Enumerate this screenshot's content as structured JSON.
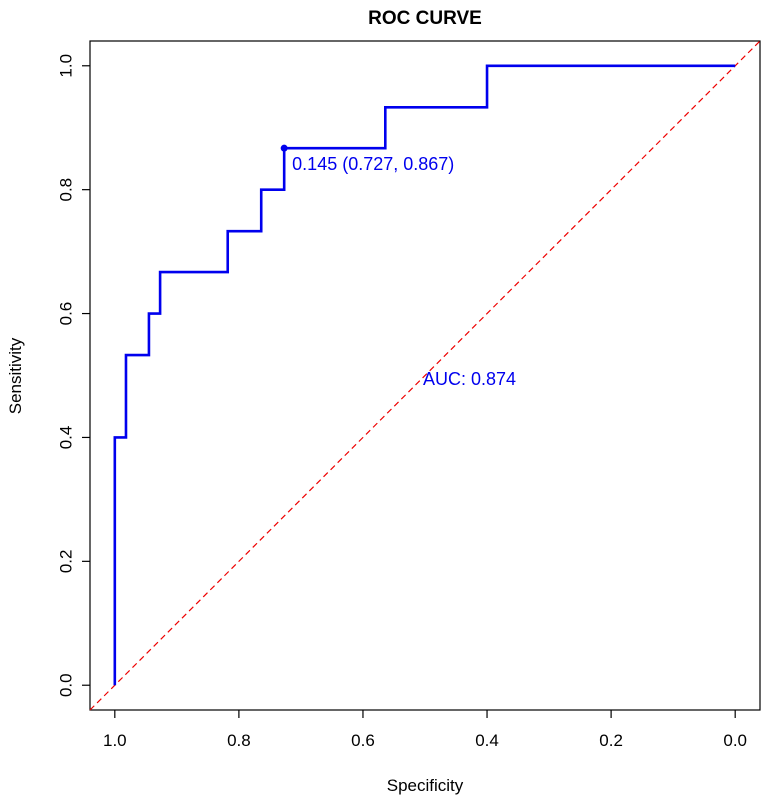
{
  "chart_data": {
    "type": "line",
    "title": "ROC CURVE",
    "xlabel": "Specificity",
    "ylabel": "Sensitivity",
    "x_reversed": true,
    "xlim": [
      1.04,
      -0.04
    ],
    "ylim": [
      -0.04,
      1.04
    ],
    "x_ticks": [
      1.0,
      0.8,
      0.6,
      0.4,
      0.2,
      0.0
    ],
    "x_tick_labels": [
      "1.0",
      "0.8",
      "0.6",
      "0.4",
      "0.2",
      "0.0"
    ],
    "y_ticks": [
      0.0,
      0.2,
      0.4,
      0.6,
      0.8,
      1.0
    ],
    "y_tick_labels": [
      "0.0",
      "0.2",
      "0.4",
      "0.6",
      "0.8",
      "1.0"
    ],
    "grid": false,
    "series": [
      {
        "color": "#0000ee",
        "x": [
          1.0,
          1.0,
          0.982,
          0.982,
          0.945,
          0.945,
          0.927,
          0.927,
          0.818,
          0.818,
          0.764,
          0.764,
          0.727,
          0.727,
          0.564,
          0.564,
          0.4,
          0.4,
          0.0
        ],
        "y": [
          0.0,
          0.4,
          0.4,
          0.533,
          0.533,
          0.6,
          0.6,
          0.667,
          0.667,
          0.733,
          0.733,
          0.8,
          0.8,
          0.867,
          0.867,
          0.933,
          0.933,
          1.0,
          1.0
        ]
      }
    ],
    "reference_line": {
      "color": "#ee0000",
      "style": "dashed",
      "x": [
        1.04,
        -0.04
      ],
      "y": [
        -0.04,
        1.04
      ]
    },
    "threshold_point": {
      "x": 0.727,
      "y": 0.867,
      "label": "0.145 (0.727, 0.867)",
      "color": "#0000ee"
    },
    "auc_annotation": {
      "label": "AUC: 0.874",
      "x": 0.5,
      "y": 0.485,
      "color": "#0000ee"
    }
  }
}
